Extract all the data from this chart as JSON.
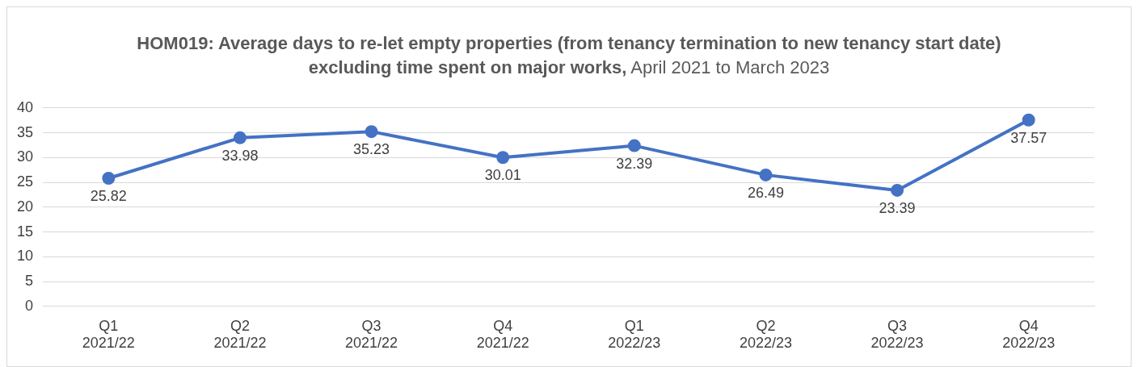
{
  "chart_data": {
    "type": "line",
    "title": "HOM019: Average days to re-let empty properties (from tenancy termination to new tenancy start date) excluding time spent on major works,",
    "subtitle": "April 2021 to March 2023",
    "categories": [
      "Q1 2021/22",
      "Q2 2021/22",
      "Q3 2021/22",
      "Q4 2021/22",
      "Q1 2022/23",
      "Q2 2022/23",
      "Q3 2022/23",
      "Q4 2022/23"
    ],
    "series": [
      {
        "color": "#4472c4",
        "values": [
          25.82,
          33.98,
          35.23,
          30.01,
          32.39,
          26.49,
          23.39,
          37.57
        ]
      }
    ],
    "ylim": [
      0,
      40
    ],
    "yticks": [
      0,
      5,
      10,
      15,
      20,
      25,
      30,
      35,
      40
    ],
    "grid": "y",
    "marker": "circle",
    "line_style": "solid",
    "data_labels": true,
    "legend": false
  }
}
